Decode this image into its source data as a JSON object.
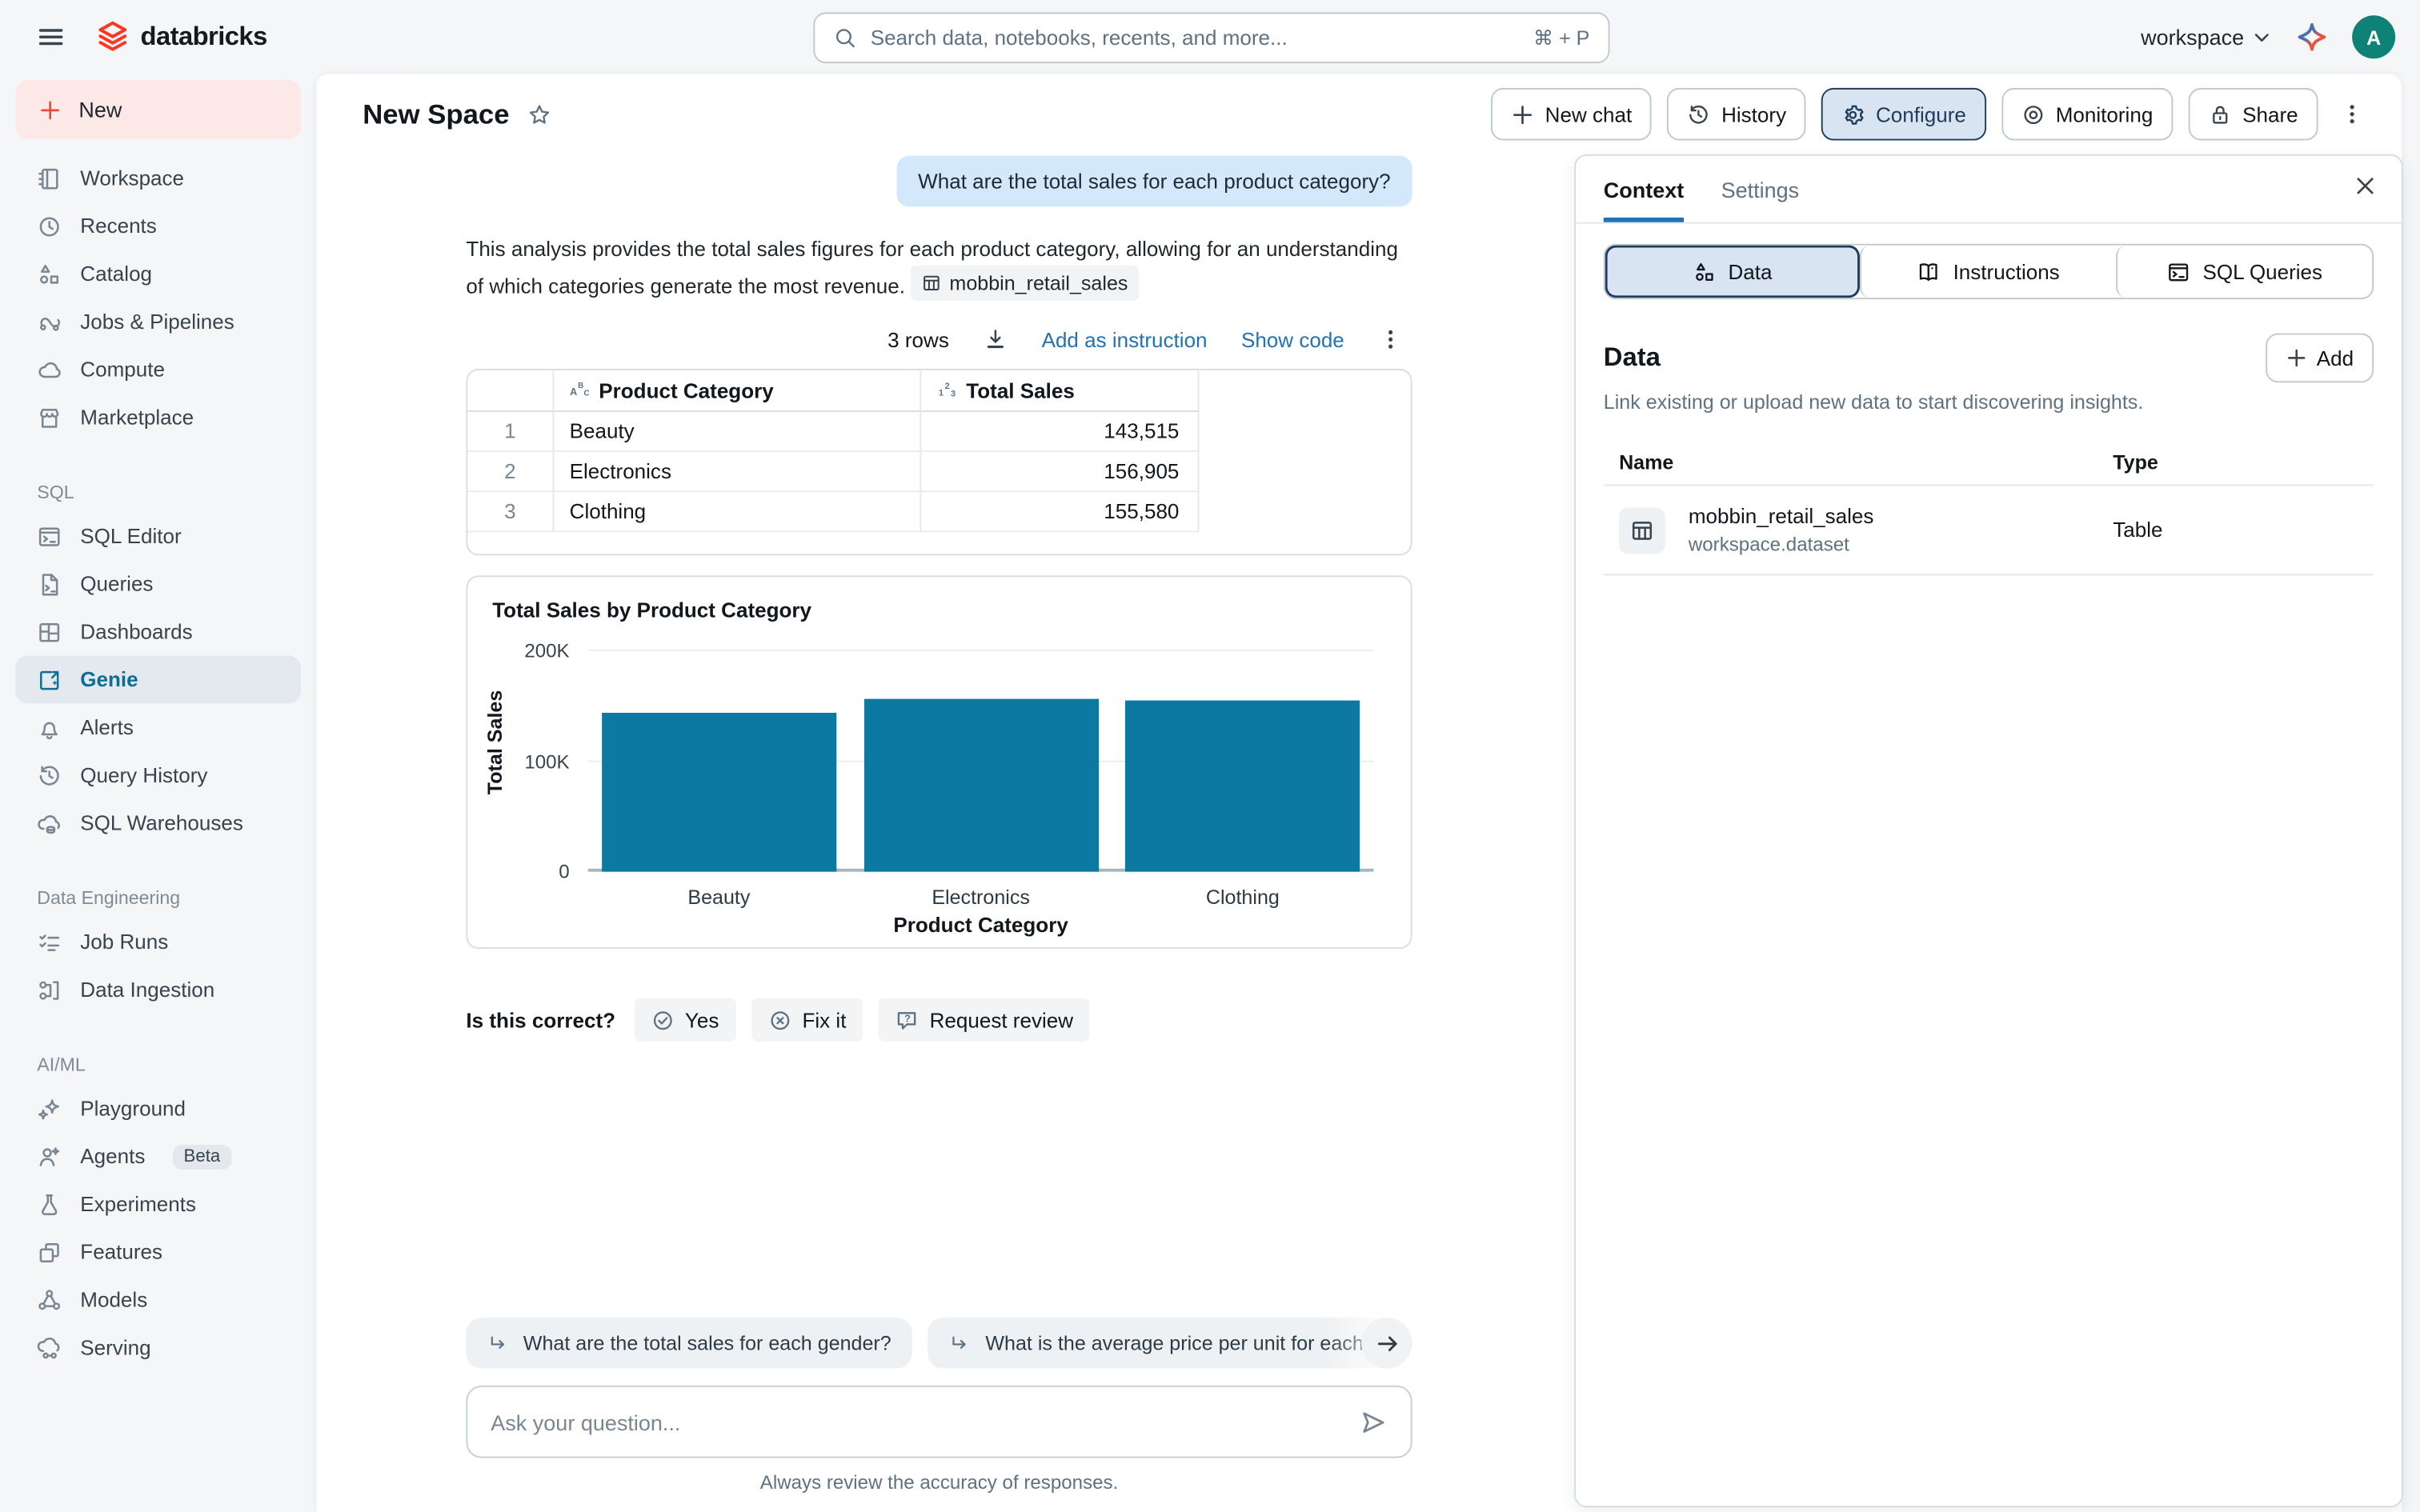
{
  "colors": {
    "brand_red": "#FF3621",
    "accent_blue": "#2272B4",
    "sidebar_active_teal": "#0C6E93",
    "bar_teal": "#0D79A1",
    "user_bubble_bg": "#D4E8FB",
    "active_button_bg": "#D8E4F1",
    "active_button_border": "#1F3C5C",
    "avatar_bg": "#0E8276"
  },
  "topbar": {
    "logo_text": "databricks",
    "search": {
      "placeholder": "Search data, notebooks, recents, and more...",
      "shortcut": "⌘ + P"
    },
    "workspace_label": "workspace",
    "avatar_initial": "A"
  },
  "sidebar": {
    "new_label": "New",
    "main_items": [
      {
        "label": "Workspace",
        "icon": "notebook"
      },
      {
        "label": "Recents",
        "icon": "clock"
      },
      {
        "label": "Catalog",
        "icon": "catalog"
      },
      {
        "label": "Jobs & Pipelines",
        "icon": "braid"
      },
      {
        "label": "Compute",
        "icon": "cloud"
      },
      {
        "label": "Marketplace",
        "icon": "store"
      }
    ],
    "sections": [
      {
        "label": "SQL",
        "items": [
          {
            "label": "SQL Editor",
            "icon": "terminal"
          },
          {
            "label": "Queries",
            "icon": "filecode"
          },
          {
            "label": "Dashboards",
            "icon": "grid"
          },
          {
            "label": "Genie",
            "icon": "genie"
          },
          {
            "label": "Alerts",
            "icon": "bell"
          },
          {
            "label": "Query History",
            "icon": "history"
          },
          {
            "label": "SQL Warehouses",
            "icon": "clouddb"
          }
        ]
      },
      {
        "label": "Data Engineering",
        "items": [
          {
            "label": "Job Runs",
            "icon": "checklist"
          },
          {
            "label": "Data Ingestion",
            "icon": "ingest"
          }
        ]
      },
      {
        "label": "AI/ML",
        "items": [
          {
            "label": "Playground",
            "icon": "sparkles"
          },
          {
            "label": "Agents",
            "icon": "agent",
            "badge": "Beta"
          },
          {
            "label": "Experiments",
            "icon": "flask"
          },
          {
            "label": "Features",
            "icon": "squares"
          },
          {
            "label": "Models",
            "icon": "network"
          },
          {
            "label": "Serving",
            "icon": "serve"
          }
        ]
      }
    ]
  },
  "header": {
    "title": "New Space",
    "buttons": {
      "new_chat": "New chat",
      "history": "History",
      "configure": "Configure",
      "monitoring": "Monitoring",
      "share": "Share"
    }
  },
  "chat": {
    "question": "What are the total sales for each product category?",
    "answer_text": "This analysis provides the total sales figures for each product category, allowing for an understanding of which categories generate the most revenue.",
    "source_chip": "mobbin_retail_sales",
    "toolbar": {
      "rows_label": "3 rows",
      "add_instruction": "Add as instruction",
      "show_code": "Show code"
    },
    "feedback": {
      "prompt": "Is this correct?",
      "yes": "Yes",
      "fix": "Fix it",
      "review": "Request review"
    },
    "suggestions": [
      "What are the total sales for each gender?",
      "What is the average price per unit for each"
    ],
    "input_placeholder": "Ask your question...",
    "disclaimer": "Always review the accuracy of responses."
  },
  "results_table": {
    "columns": [
      {
        "label": "Product Category",
        "icon": "abc"
      },
      {
        "label": "Total Sales",
        "icon": "onetwothree"
      }
    ],
    "rows": [
      {
        "num": "1",
        "category": "Beauty",
        "total": "143,515"
      },
      {
        "num": "2",
        "category": "Electronics",
        "total": "156,905"
      },
      {
        "num": "3",
        "category": "Clothing",
        "total": "155,580"
      }
    ]
  },
  "chart_data": {
    "type": "bar",
    "title": "Total Sales by Product Category",
    "categories": [
      "Beauty",
      "Electronics",
      "Clothing"
    ],
    "values": [
      143515,
      156905,
      155580
    ],
    "xlabel": "Product Category",
    "ylabel": "Total Sales",
    "ylim": [
      0,
      200000
    ],
    "yticks": [
      "200K",
      "100K",
      "0"
    ],
    "grid": true,
    "legend": false,
    "bar_color": "#0D79A1"
  },
  "context_panel": {
    "tabs": {
      "context": "Context",
      "settings": "Settings"
    },
    "views": [
      {
        "label": "Data",
        "icon": "catalog"
      },
      {
        "label": "Instructions",
        "icon": "book"
      },
      {
        "label": "SQL Queries",
        "icon": "terminal"
      }
    ],
    "section_title": "Data",
    "add_button": "Add",
    "description": "Link existing or upload new data to start discovering insights.",
    "table": {
      "name_header": "Name",
      "type_header": "Type",
      "row": {
        "name": "mobbin_retail_sales",
        "path": "workspace.dataset",
        "type": "Table"
      }
    }
  }
}
